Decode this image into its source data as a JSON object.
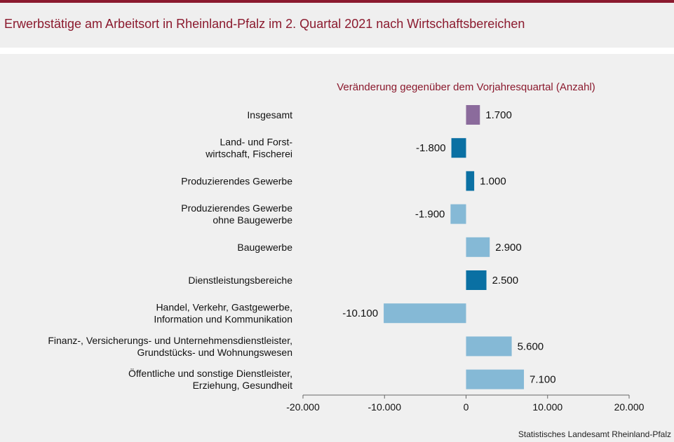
{
  "header": {
    "title": "Erwerbstätige am Arbeitsort in Rheinland-Pfalz im 2. Quartal 2021 nach Wirtschaftsbereichen"
  },
  "source": "Statistisches Landesamt Rheinland-Pfalz",
  "chart_data": {
    "type": "bar",
    "orientation": "horizontal",
    "title": "Erwerbstätige am Arbeitsort in Rheinland-Pfalz im 2. Quartal 2021 nach Wirtschaftsbereichen",
    "xlabel": "Veränderung gegenüber dem Vorjahresquartal (Anzahl)",
    "xlim": [
      -20000,
      20000
    ],
    "xticks": [
      -20000,
      -10000,
      0,
      10000,
      20000
    ],
    "xtick_labels": [
      "-20.000",
      "-10.000",
      "0",
      "10.000",
      "20.000"
    ],
    "grid": false,
    "categories": [
      [
        "Insgesamt"
      ],
      [
        "Land- und Forst-",
        "wirtschaft, Fischerei"
      ],
      [
        "Produzierendes Gewerbe"
      ],
      [
        "Produzierendes Gewerbe",
        "ohne Baugewerbe"
      ],
      [
        "Baugewerbe"
      ],
      [
        "Dienstleistungsbereiche"
      ],
      [
        "Handel, Verkehr, Gastgewerbe,",
        "Information und Kommunikation"
      ],
      [
        "Finanz-, Versicherungs- und Unternehmensdienstleister,",
        "Grundstücks- und Wohnungswesen"
      ],
      [
        "Öffentliche und sonstige Dienstleister,",
        "Erziehung, Gesundheit"
      ]
    ],
    "values": [
      1700,
      -1800,
      1000,
      -1900,
      2900,
      2500,
      -10100,
      5600,
      7100
    ],
    "value_labels": [
      "1.700",
      "-1.800",
      "1.000",
      "-1.900",
      "2.900",
      "2.500",
      "-10.100",
      "5.600",
      "7.100"
    ],
    "colors": [
      "#8b6b9c",
      "#0a70a3",
      "#0a70a3",
      "#85b9d6",
      "#85b9d6",
      "#0a70a3",
      "#85b9d6",
      "#85b9d6",
      "#85b9d6"
    ]
  }
}
